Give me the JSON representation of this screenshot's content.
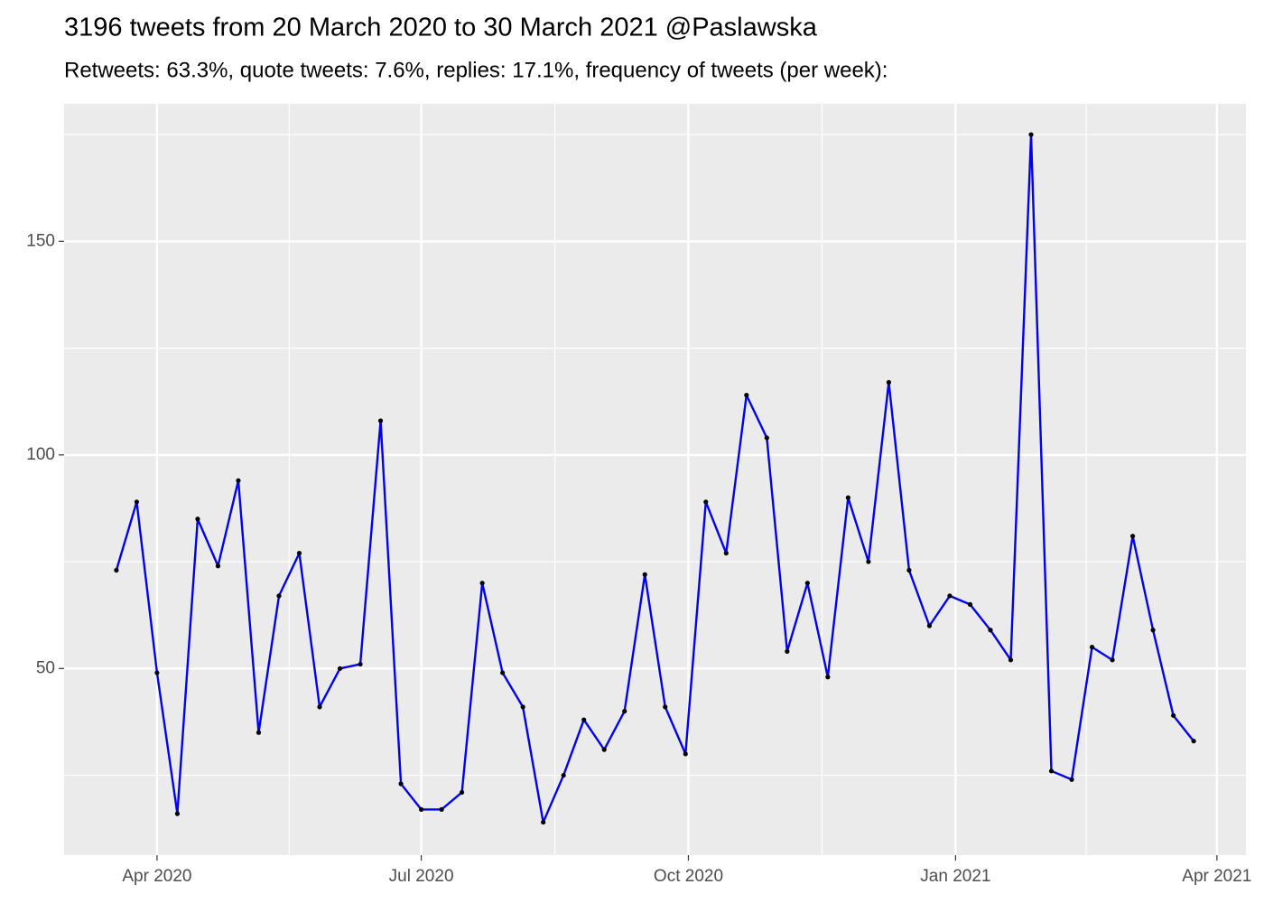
{
  "chart_data": {
    "type": "line",
    "title": "3196 tweets from 20 March 2020 to 30 March 2021 @Paslawska",
    "subtitle": "Retweets: 63.3%, quote tweets: 7.6%, replies: 17.1%, frequency of tweets (per week):",
    "x": [
      "2020-03-18",
      "2020-03-25",
      "2020-04-01",
      "2020-04-08",
      "2020-04-15",
      "2020-04-22",
      "2020-04-29",
      "2020-05-06",
      "2020-05-13",
      "2020-05-20",
      "2020-05-27",
      "2020-06-03",
      "2020-06-10",
      "2020-06-17",
      "2020-06-24",
      "2020-07-01",
      "2020-07-08",
      "2020-07-15",
      "2020-07-22",
      "2020-07-29",
      "2020-08-05",
      "2020-08-12",
      "2020-08-19",
      "2020-08-26",
      "2020-09-02",
      "2020-09-09",
      "2020-09-16",
      "2020-09-23",
      "2020-09-30",
      "2020-10-07",
      "2020-10-14",
      "2020-10-21",
      "2020-10-28",
      "2020-11-04",
      "2020-11-11",
      "2020-11-18",
      "2020-11-25",
      "2020-12-02",
      "2020-12-09",
      "2020-12-16",
      "2020-12-23",
      "2020-12-30",
      "2021-01-06",
      "2021-01-13",
      "2021-01-20",
      "2021-01-27",
      "2021-02-03",
      "2021-02-10",
      "2021-02-17",
      "2021-02-24",
      "2021-03-03",
      "2021-03-10",
      "2021-03-17",
      "2021-03-24"
    ],
    "series": [
      {
        "color": "#0000ee",
        "point_color": "#000000",
        "values": [
          73,
          89,
          49,
          16,
          85,
          74,
          94,
          35,
          67,
          77,
          41,
          50,
          51,
          108,
          23,
          17,
          17,
          21,
          70,
          49,
          41,
          14,
          25,
          38,
          31,
          40,
          72,
          41,
          30,
          89,
          77,
          114,
          104,
          54,
          70,
          48,
          90,
          75,
          117,
          73,
          60,
          67,
          65,
          59,
          52,
          175,
          26,
          24,
          55,
          52,
          81,
          59,
          39,
          33
        ]
      }
    ],
    "xlim": [
      "2020-02-29",
      "2021-04-11"
    ],
    "xticks": [
      {
        "value": "2020-04-01",
        "label": "Apr 2020"
      },
      {
        "value": "2020-07-01",
        "label": "Jul 2020"
      },
      {
        "value": "2020-10-01",
        "label": "Oct 2020"
      },
      {
        "value": "2021-01-01",
        "label": "Jan 2021"
      },
      {
        "value": "2021-04-01",
        "label": "Apr 2021"
      }
    ],
    "ylim": [
      6.3,
      182.2
    ],
    "yticks": [
      50,
      100,
      150
    ],
    "grid": true
  }
}
